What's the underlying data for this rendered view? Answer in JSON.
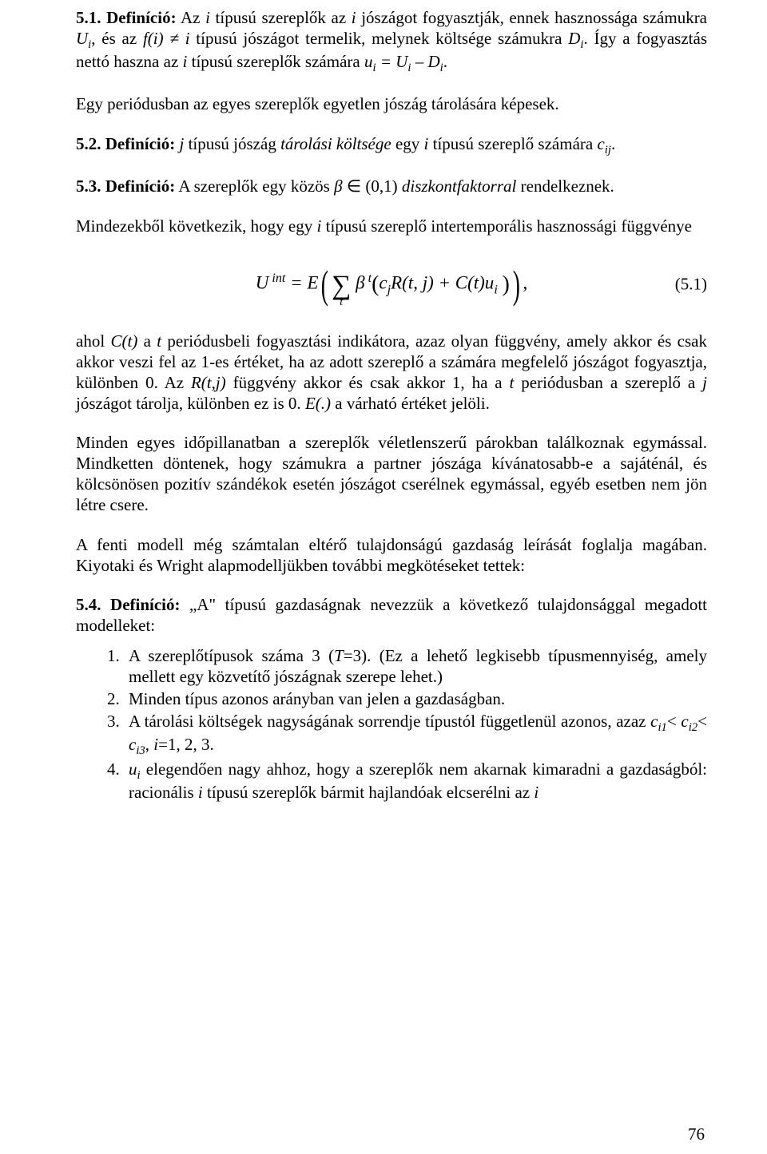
{
  "p1_prefix": "5.1. Definíció:",
  "p1_body_a": " Az ",
  "p1_i1": "i",
  "p1_body_b": " típusú szereplők az ",
  "p1_i2": "i",
  "p1_body_c": " jószágot fogyasztják, ennek hasznossága számukra ",
  "p1_Ui": "U",
  "p1_Ui_sub": "i",
  "p1_body_d": ", és az ",
  "p1_fi": "f(i) ≠ i",
  "p1_body_e": " típusú jószágot termelik, melynek költsége számukra ",
  "p1_Di": "D",
  "p1_Di_sub": "i",
  "p1_body_f": ". Így a fogyasztás nettó haszna az ",
  "p1_i3": "i",
  "p1_body_g": " típusú szereplők számára ",
  "p1_eq": "u",
  "p1_eq_sub": "i",
  "p1_eq_mid": " = U",
  "p1_eq_sub2": "i",
  "p1_eq_mid2": " – D",
  "p1_eq_sub3": "i",
  "p1_body_h": ".",
  "p2": "Egy periódusban az egyes szereplők egyetlen jószág tárolására képesek.",
  "p3_prefix": "5.2. Definíció:",
  "p3_body_a": "  j ",
  "p3_body_b": "típusú jószág ",
  "p3_ital": "tárolási költsége",
  "p3_body_c": " egy ",
  "p3_i": "i",
  "p3_body_d": " típusú szereplő számára ",
  "p3_c": "c",
  "p3_c_sub": "ij",
  "p3_body_e": ".",
  "p4_prefix": "5.3. Definíció:",
  "p4_body_a": " A szereplők egy közös ",
  "p4_beta": "β",
  "p4_in": " ∈ (0,1) ",
  "p4_ital": "diszkontfaktorral",
  "p4_body_b": " rendelkeznek.",
  "p5_a": "Mindezekből következik, hogy egy ",
  "p5_i": "i",
  "p5_b": " típusú szereplő intertemporális hasznossági függvénye",
  "eq_Uint": "U",
  "eq_Uint_sup": " int",
  "eq_eq": " = E",
  "eq_beta": "β",
  "eq_t": " t",
  "eq_inner_a": "c",
  "eq_j": "j",
  "eq_inner_b": "R(t, j) + C(t)u",
  "eq_i": "i",
  "eq_comma": ",",
  "eq_label": "(5.1)",
  "p6_a": "ahol ",
  "p6_Ct": "C(t)",
  "p6_b": " a ",
  "p6_t": "t",
  "p6_c": " periódusbeli fogyasztási indikátora, azaz olyan függvény, amely akkor és csak akkor veszi fel az 1-es értéket, ha az adott szereplő a számára megfelelő jószágot fogyasztja, különben 0. Az ",
  "p6_Rtj": "R(t,j)",
  "p6_d": " függvény akkor és csak akkor 1, ha a ",
  "p6_t2": "t",
  "p6_e": " periódusban a szereplő a ",
  "p6_j": "j",
  "p6_f": " jószágot tárolja, különben ez is 0. ",
  "p6_E": "E(.)",
  "p6_g": " a várható értéket jelöli.",
  "p7": "Minden egyes időpillanatban a szereplők véletlenszerű párokban találkoznak egymással. Mindketten döntenek, hogy számukra a partner jószága kívánatosabb-e a sajáténál, és kölcsönösen pozitív szándékok esetén jószágot cserélnek egymással, egyéb esetben nem jön létre csere.",
  "p8": "A fenti modell még számtalan eltérő tulajdonságú gazdaság leírását foglalja magában. Kiyotaki és Wright alapmodelljükben további megkötéseket tettek:",
  "p9_prefix": "5.4. Definíció:",
  "p9_body": " „A\" típusú gazdaságnak nevezzük a következő tulajdonsággal megadott modelleket:",
  "li1_a": "A szereplőtípusok száma 3 (",
  "li1_T": "T",
  "li1_b": "=3). (Ez a lehető legkisebb típusmennyiség, amely mellett egy közvetítő jószágnak szerepe lehet.)",
  "li2": "Minden típus azonos arányban van jelen a gazdaságban.",
  "li3_a": "A tárolási költségek nagyságának sorrendje típustól függetlenül azonos, azaz ",
  "li3_c1": "c",
  "li3_c1s": "i1",
  "li3_lt1": "< ",
  "li3_c2": "c",
  "li3_c2s": "i2",
  "li3_lt2": "< ",
  "li3_c3": "c",
  "li3_c3s": "i3",
  "li3_b": ", ",
  "li3_i": "i",
  "li3_c": "=1, 2, 3.",
  "li4_u": "u",
  "li4_us": "i",
  "li4_a": " elegendően nagy ahhoz, hogy a szereplők nem akarnak kimaradni a gazdaságból: racionális ",
  "li4_i": "i",
  "li4_b": " típusú szereplők bármit hajlandóak elcserélni az ",
  "li4_i2": "i",
  "page_num": "76"
}
